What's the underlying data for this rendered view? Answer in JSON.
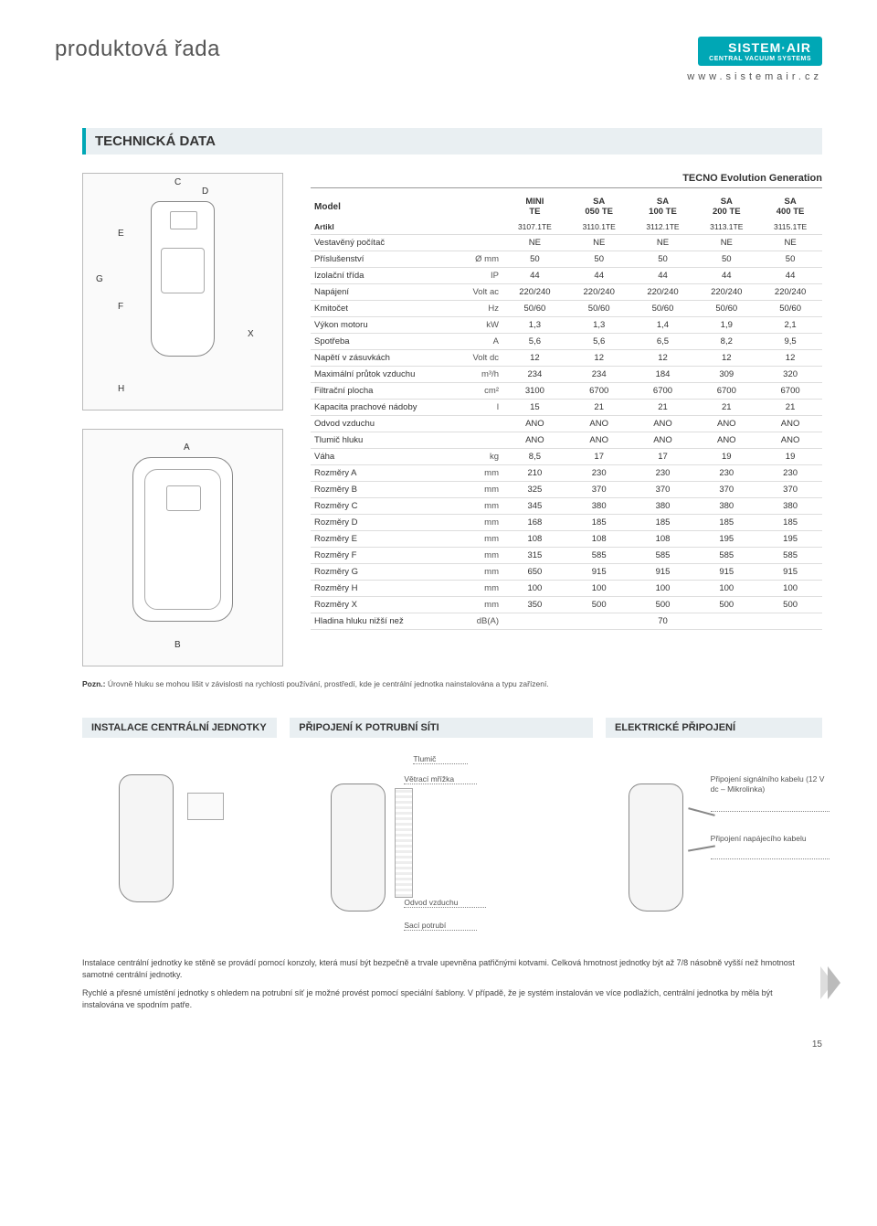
{
  "header": {
    "title": "produktová řada",
    "brand": "SISTEM·AIR",
    "brand_sub": "CENTRAL VACUUM SYSTEMS",
    "website": "www.sistemair.cz"
  },
  "section_title": "TECHNICKÁ DATA",
  "table_title": "TECNO Evolution Generation",
  "model_label": "Model",
  "artikl_label": "Artikl",
  "columns": [
    "MINI TE",
    "SA 050 TE",
    "SA 100 TE",
    "SA 200 TE",
    "SA 400 TE"
  ],
  "article_codes": [
    "3107.1TE",
    "3110.1TE",
    "3112.1TE",
    "3113.1TE",
    "3115.1TE"
  ],
  "rows": [
    {
      "label": "Vestavěný počítač",
      "unit": "",
      "vals": [
        "NE",
        "NE",
        "NE",
        "NE",
        "NE"
      ]
    },
    {
      "label": "Příslušenství",
      "unit": "Ø mm",
      "vals": [
        "50",
        "50",
        "50",
        "50",
        "50"
      ]
    },
    {
      "label": "Izolační třída",
      "unit": "IP",
      "vals": [
        "44",
        "44",
        "44",
        "44",
        "44"
      ]
    },
    {
      "label": "Napájení",
      "unit": "Volt ac",
      "vals": [
        "220/240",
        "220/240",
        "220/240",
        "220/240",
        "220/240"
      ]
    },
    {
      "label": "Kmitočet",
      "unit": "Hz",
      "vals": [
        "50/60",
        "50/60",
        "50/60",
        "50/60",
        "50/60"
      ]
    },
    {
      "label": "Výkon motoru",
      "unit": "kW",
      "vals": [
        "1,3",
        "1,3",
        "1,4",
        "1,9",
        "2,1"
      ]
    },
    {
      "label": "Spotřeba",
      "unit": "A",
      "vals": [
        "5,6",
        "5,6",
        "6,5",
        "8,2",
        "9,5"
      ]
    },
    {
      "label": "Napětí v zásuvkách",
      "unit": "Volt dc",
      "vals": [
        "12",
        "12",
        "12",
        "12",
        "12"
      ]
    },
    {
      "label": "Maximální průtok vzduchu",
      "unit": "m³/h",
      "vals": [
        "234",
        "234",
        "184",
        "309",
        "320"
      ]
    },
    {
      "label": "Filtrační plocha",
      "unit": "cm²",
      "vals": [
        "3100",
        "6700",
        "6700",
        "6700",
        "6700"
      ]
    },
    {
      "label": "Kapacita prachové nádoby",
      "unit": "l",
      "vals": [
        "15",
        "21",
        "21",
        "21",
        "21"
      ]
    },
    {
      "label": "Odvod vzduchu",
      "unit": "",
      "vals": [
        "ANO",
        "ANO",
        "ANO",
        "ANO",
        "ANO"
      ]
    },
    {
      "label": "Tlumič hluku",
      "unit": "",
      "vals": [
        "ANO",
        "ANO",
        "ANO",
        "ANO",
        "ANO"
      ]
    },
    {
      "label": "Váha",
      "unit": "kg",
      "vals": [
        "8,5",
        "17",
        "17",
        "19",
        "19"
      ]
    },
    {
      "label": "Rozměry A",
      "unit": "mm",
      "vals": [
        "210",
        "230",
        "230",
        "230",
        "230"
      ]
    },
    {
      "label": "Rozměry B",
      "unit": "mm",
      "vals": [
        "325",
        "370",
        "370",
        "370",
        "370"
      ]
    },
    {
      "label": "Rozměry C",
      "unit": "mm",
      "vals": [
        "345",
        "380",
        "380",
        "380",
        "380"
      ]
    },
    {
      "label": "Rozměry D",
      "unit": "mm",
      "vals": [
        "168",
        "185",
        "185",
        "185",
        "185"
      ]
    },
    {
      "label": "Rozměry E",
      "unit": "mm",
      "vals": [
        "108",
        "108",
        "108",
        "195",
        "195"
      ]
    },
    {
      "label": "Rozměry F",
      "unit": "mm",
      "vals": [
        "315",
        "585",
        "585",
        "585",
        "585"
      ]
    },
    {
      "label": "Rozměry G",
      "unit": "mm",
      "vals": [
        "650",
        "915",
        "915",
        "915",
        "915"
      ]
    },
    {
      "label": "Rozměry H",
      "unit": "mm",
      "vals": [
        "100",
        "100",
        "100",
        "100",
        "100"
      ]
    },
    {
      "label": "Rozměry X",
      "unit": "mm",
      "vals": [
        "350",
        "500",
        "500",
        "500",
        "500"
      ]
    },
    {
      "label": "Hladina hluku nižší než",
      "unit": "dB(A)",
      "vals": [
        "",
        "",
        "70",
        "",
        ""
      ]
    }
  ],
  "note_label": "Pozn.:",
  "note_text": "Úrovně hluku se mohou lišit v závislosti na rychlosti používání, prostředí, kde je centrální jednotka nainstalována a typu zařízení.",
  "install_headings": {
    "a": "INSTALACE CENTRÁLNÍ JEDNOTKY",
    "b": "PŘIPOJENÍ K POTRUBNÍ SÍTI",
    "c": "ELEKTRICKÉ PŘIPOJENÍ"
  },
  "callouts": {
    "tlumic": "Tlumič",
    "mrizka": "Větrací mřížka",
    "odvod": "Odvod vzduchu",
    "saci": "Sací potrubí",
    "signal": "Připojení signálního kabelu (12 V dc – Mikrolinka)",
    "napajeci": "Připojení napájecího kabelu"
  },
  "bottom": {
    "p1": "Instalace centrální jednotky ke stěně se provádí pomocí konzoly, která musí být bezpečně a trvale upevněna patřičnými kotvami. Celková hmotnost jednotky být až 7/8 násobně vyšší než hmotnost samotné centrální jednotky.",
    "p2": "Rychlé a přesné umístění jednotky s ohledem na potrubní síť je možné provést pomocí speciální šablony. V případě, že je systém instalován ve více podlažích, centrální jednotka by měla být instalována ve spodním patře."
  },
  "page_num": "15",
  "diagram_dims": [
    "C",
    "D",
    "E",
    "G",
    "F",
    "X",
    "H",
    "A",
    "B"
  ]
}
